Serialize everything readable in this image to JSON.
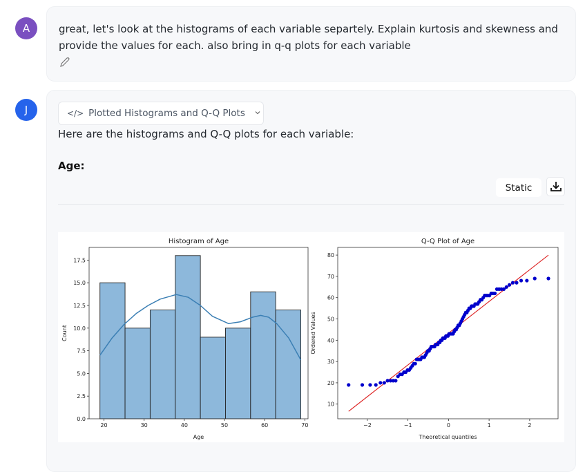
{
  "user_message": {
    "avatar_letter": "A",
    "avatar_color": "#7a4fc0",
    "text": "great, let's look at the histograms of each variable separtely. Explain kurtosis and skewness and provide the values for each. also bring in q-q plots for each variable",
    "edit_icon": "pencil-icon"
  },
  "assistant_message": {
    "avatar_letter": "J",
    "avatar_color": "#2563eb",
    "code_toggle_label": "Plotted Histograms and Q-Q Plots",
    "intro": "Here are the histograms and Q-Q plots for each variable:",
    "section_heading": "Age:",
    "static_label": "Static",
    "download_icon": "download-icon"
  },
  "chart_data": [
    {
      "type": "bar",
      "title": "Histogram of Age",
      "xlabel": "Age",
      "ylabel": "Count",
      "bin_edges": [
        19,
        25.25,
        31.5,
        37.75,
        44,
        50.25,
        56.5,
        62.75,
        69
      ],
      "values": [
        15,
        10,
        12,
        18,
        9,
        10,
        14,
        12
      ],
      "kde": {
        "x": [
          19,
          22,
          25,
          28,
          31,
          34,
          38,
          41,
          44,
          47,
          51,
          54,
          57,
          59,
          61,
          63,
          66,
          69
        ],
        "y": [
          7.0,
          8.9,
          10.4,
          11.6,
          12.5,
          13.2,
          13.7,
          13.4,
          12.5,
          11.3,
          10.5,
          10.7,
          11.2,
          11.4,
          11.2,
          10.5,
          8.9,
          6.5
        ]
      },
      "xlim": [
        16.3,
        70.8
      ],
      "ylim": [
        0,
        18.9
      ],
      "xticks": [
        20,
        30,
        40,
        50,
        60,
        70
      ],
      "yticks": [
        "0.0",
        "2.5",
        "5.0",
        "7.5",
        "10.0",
        "12.5",
        "15.0",
        "17.5"
      ],
      "bar_color": "#8db8db",
      "line_color": "#3b7fb4"
    },
    {
      "type": "scatter",
      "title": "Q-Q Plot of Age",
      "xlabel": "Theoretical quantiles",
      "ylabel": "Ordered Values",
      "ordered_values": [
        19,
        19,
        19,
        19,
        20,
        20,
        21,
        21,
        21,
        21,
        23,
        24,
        24,
        25,
        25,
        26,
        26,
        27,
        28,
        29,
        29,
        31,
        31,
        31,
        31,
        32,
        32,
        32,
        33,
        34,
        35,
        35,
        36,
        37,
        37,
        37,
        37,
        38,
        38,
        38,
        39,
        39,
        40,
        40,
        41,
        41,
        41,
        42,
        42,
        42,
        43,
        43,
        43,
        43,
        43,
        44,
        45,
        45,
        46,
        47,
        47,
        48,
        49,
        50,
        51,
        52,
        53,
        53,
        54,
        55,
        55,
        56,
        56,
        56,
        57,
        57,
        57,
        58,
        59,
        59,
        60,
        61,
        61,
        61,
        61,
        62,
        62,
        62,
        64,
        64,
        64,
        64,
        65,
        66,
        67,
        67,
        68,
        68,
        69,
        69
      ],
      "fit_line": {
        "slope": 14.9,
        "intercept": 43.3
      },
      "xlim": [
        -2.73,
        2.7
      ],
      "ylim": [
        3.1,
        83.6
      ],
      "xticks": [
        "−2",
        "−1",
        "0",
        "1",
        "2"
      ],
      "xtick_values": [
        -2,
        -1,
        0,
        1,
        2
      ],
      "yticks": [
        10,
        20,
        30,
        40,
        50,
        60,
        70,
        80
      ],
      "point_color": "#0000cc",
      "line_color": "#dd2222"
    }
  ]
}
